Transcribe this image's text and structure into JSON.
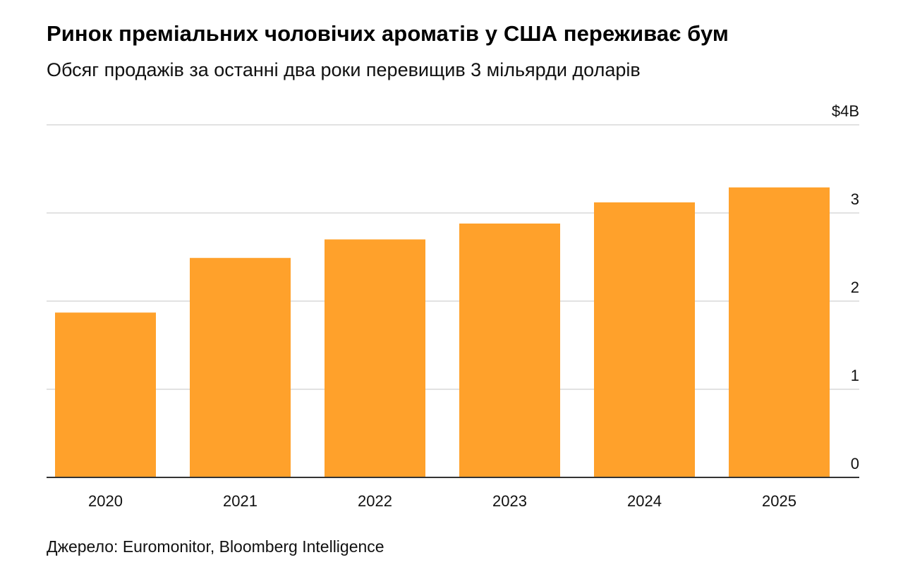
{
  "title": "Ринок преміальних чоловічих ароматів у США переживає бум",
  "subtitle": "Обсяг продажів за останні два роки перевищив 3 мільярди доларів",
  "source": "Джерело: Euromonitor, Bloomberg Intelligence",
  "colors": {
    "bar": "#ffa12b",
    "grid": "#d9d9d9",
    "axis": "#333333"
  },
  "chart_data": {
    "type": "bar",
    "categories": [
      "2020",
      "2021",
      "2022",
      "2023",
      "2024",
      "2025"
    ],
    "values": [
      1.87,
      2.49,
      2.7,
      2.88,
      3.12,
      3.29
    ],
    "ylim": [
      0,
      4
    ],
    "yticks": [
      0,
      1,
      2,
      3,
      4
    ],
    "ytick_labels": [
      "0",
      "1",
      "2",
      "3",
      "$4B"
    ],
    "y_axis_side": "right",
    "grid": true,
    "xlabel": "",
    "ylabel": ""
  }
}
